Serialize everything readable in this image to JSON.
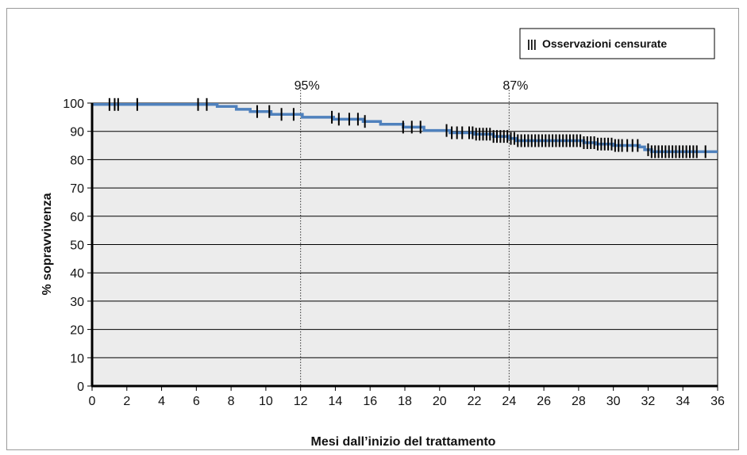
{
  "chart_data": {
    "type": "line",
    "step": true,
    "title": "",
    "xlabel": "Mesi dall’inizio del trattamento",
    "ylabel": "% sopravvivenza",
    "xlim": [
      0,
      36
    ],
    "ylim": [
      0,
      100
    ],
    "x_ticks": [
      0,
      2,
      4,
      6,
      8,
      10,
      12,
      14,
      16,
      18,
      20,
      22,
      24,
      26,
      28,
      30,
      32,
      34,
      36
    ],
    "y_ticks": [
      0,
      10,
      20,
      30,
      40,
      50,
      60,
      70,
      80,
      90,
      100
    ],
    "grid": "horizontal",
    "legend": {
      "label": "Osservazioni censurate",
      "symbol": "|||",
      "placement": "top-right"
    },
    "colors": {
      "curve": "#4f81bd",
      "plot_bg": "#ececec",
      "grid": "#000000",
      "censor": "#000000"
    },
    "series": [
      {
        "values_xy": [
          [
            0,
            99.5
          ],
          [
            6.8,
            99.5
          ],
          [
            7.2,
            98.8
          ],
          [
            8.2,
            98.8
          ],
          [
            8.3,
            97.8
          ],
          [
            9.0,
            97.8
          ],
          [
            9.1,
            97.0
          ],
          [
            10.2,
            97.0
          ],
          [
            10.3,
            96.0
          ],
          [
            12.0,
            96.0
          ],
          [
            12.1,
            95.0
          ],
          [
            13.8,
            95.0
          ],
          [
            13.9,
            94.3
          ],
          [
            15.5,
            94.3
          ],
          [
            15.6,
            93.5
          ],
          [
            16.5,
            93.5
          ],
          [
            16.6,
            92.5
          ],
          [
            17.8,
            92.5
          ],
          [
            17.9,
            91.5
          ],
          [
            19.0,
            91.5
          ],
          [
            19.1,
            90.3
          ],
          [
            20.5,
            90.3
          ],
          [
            20.6,
            89.5
          ],
          [
            21.8,
            89.5
          ],
          [
            22.0,
            89.0
          ],
          [
            23.0,
            89.0
          ],
          [
            23.1,
            88.2
          ],
          [
            24.0,
            87.5
          ],
          [
            24.4,
            86.7
          ],
          [
            27.5,
            86.7
          ],
          [
            28.3,
            86.0
          ],
          [
            29.0,
            85.5
          ],
          [
            30.0,
            85.0
          ],
          [
            31.5,
            84.5
          ],
          [
            31.8,
            83.5
          ],
          [
            32.2,
            82.8
          ],
          [
            36,
            82.8
          ]
        ]
      }
    ],
    "censored_x": [
      1.0,
      1.3,
      1.5,
      2.6,
      6.1,
      6.6,
      9.5,
      10.2,
      10.9,
      11.6,
      13.8,
      14.2,
      14.8,
      15.3,
      15.7,
      17.9,
      18.4,
      18.9,
      20.4,
      20.7,
      21.0,
      21.3,
      21.7,
      21.9,
      22.1,
      22.3,
      22.5,
      22.7,
      22.9,
      23.1,
      23.3,
      23.5,
      23.7,
      23.9,
      24.1,
      24.3,
      24.5,
      24.7,
      24.9,
      25.1,
      25.3,
      25.5,
      25.7,
      25.9,
      26.1,
      26.3,
      26.5,
      26.7,
      26.9,
      27.1,
      27.3,
      27.5,
      27.7,
      27.9,
      28.1,
      28.3,
      28.5,
      28.7,
      28.9,
      29.1,
      29.3,
      29.5,
      29.7,
      29.9,
      30.1,
      30.3,
      30.5,
      30.8,
      31.1,
      31.4,
      32.0,
      32.2,
      32.4,
      32.6,
      32.8,
      33.0,
      33.2,
      33.4,
      33.6,
      33.8,
      34.0,
      34.2,
      34.4,
      34.6,
      34.8,
      35.3
    ],
    "annotations": [
      {
        "x": 12,
        "text": "95%"
      },
      {
        "x": 24,
        "text": "87%"
      }
    ]
  }
}
